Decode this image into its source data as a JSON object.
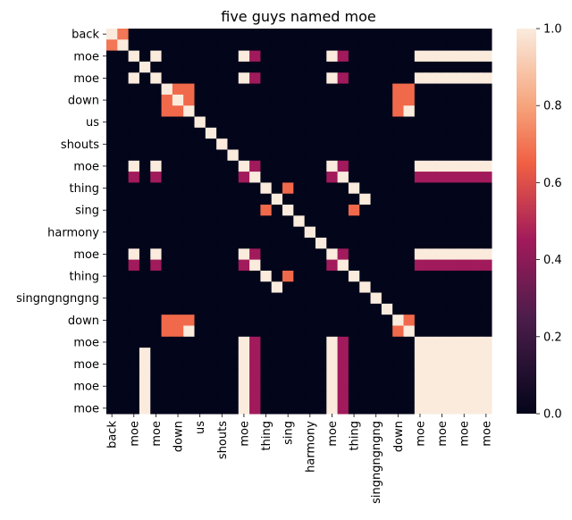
{
  "chart_data": {
    "type": "heatmap",
    "title": "five guys named moe",
    "xlabel": "",
    "ylabel": "",
    "row_labels": [
      "back",
      "moe",
      "moe",
      "down",
      "us",
      "shouts",
      "moe",
      "thing",
      "sing",
      "harmony",
      "moe",
      "thing",
      "singngngngng",
      "down",
      "moe",
      "moe",
      "moe",
      "moe"
    ],
    "col_labels": [
      "back",
      "moe",
      "moe",
      "down",
      "us",
      "shouts",
      "moe",
      "thing",
      "sing",
      "harmony",
      "moe",
      "thing",
      "singngngngng",
      "down",
      "moe",
      "moe",
      "moe",
      "moe"
    ],
    "y_tick_rows": [
      0,
      2,
      4,
      6,
      8,
      10,
      12,
      14,
      16,
      18,
      20,
      22,
      24,
      26,
      28,
      30,
      32,
      34
    ],
    "x_tick_cols": [
      0,
      2,
      4,
      6,
      8,
      10,
      12,
      14,
      16,
      18,
      20,
      22,
      24,
      26,
      28,
      30,
      32,
      34
    ],
    "colorbar": {
      "range": [
        0.0,
        1.0
      ],
      "ticks": [
        "0.0",
        "0.2",
        "0.4",
        "0.6",
        "0.8",
        "1.0"
      ]
    },
    "colormap": {
      "stops": [
        [
          0.0,
          "#03051a"
        ],
        [
          0.25,
          "#4c1d4b"
        ],
        [
          0.45,
          "#a11a5b"
        ],
        [
          0.65,
          "#f06043"
        ],
        [
          0.8,
          "#f6a47c"
        ],
        [
          1.0,
          "#faebdd"
        ]
      ]
    },
    "n": 35,
    "values": [
      [
        1,
        0.7,
        0,
        0,
        0,
        0,
        0,
        0,
        0,
        0,
        0,
        0,
        0,
        0,
        0,
        0,
        0,
        0,
        0,
        0,
        0,
        0,
        0,
        0,
        0,
        0,
        0,
        0,
        0,
        0,
        0,
        0,
        0,
        0,
        0
      ],
      [
        0.7,
        1,
        0,
        0,
        0,
        0,
        0,
        0,
        0,
        0,
        0,
        0,
        0,
        0,
        0,
        0,
        0,
        0,
        0,
        0,
        0,
        0,
        0,
        0,
        0,
        0,
        0,
        0,
        0,
        0,
        0,
        0,
        0,
        0,
        0
      ],
      [
        0,
        0,
        1,
        0,
        1,
        0,
        0,
        0,
        0,
        0,
        0,
        0,
        1,
        0.45,
        0,
        0,
        0,
        0,
        0,
        0,
        1,
        0.45,
        0,
        0,
        0,
        0,
        0,
        0,
        1,
        1,
        1,
        1,
        1,
        1,
        1
      ],
      [
        0,
        0,
        0,
        1,
        0,
        0,
        0,
        0,
        0,
        0,
        0,
        0,
        0,
        0,
        0,
        0,
        0,
        0,
        0,
        0,
        0,
        0,
        0,
        0,
        0,
        0,
        0,
        0,
        0,
        0,
        0,
        0,
        0,
        0,
        0
      ],
      [
        0,
        0,
        1,
        0,
        1,
        0,
        0,
        0,
        0,
        0,
        0,
        0,
        1,
        0.45,
        0,
        0,
        0,
        0,
        0,
        0,
        1,
        0.45,
        0,
        0,
        0,
        0,
        0,
        0,
        1,
        1,
        1,
        1,
        1,
        1,
        1
      ],
      [
        0,
        0,
        0,
        0,
        0,
        1,
        0.67,
        0.67,
        0,
        0,
        0,
        0,
        0,
        0,
        0,
        0,
        0,
        0,
        0,
        0,
        0,
        0,
        0,
        0,
        0,
        0,
        0.67,
        0.67,
        0,
        0,
        0,
        0,
        0,
        0,
        0
      ],
      [
        0,
        0,
        0,
        0,
        0,
        0.67,
        1,
        0.67,
        0,
        0,
        0,
        0,
        0,
        0,
        0,
        0,
        0,
        0,
        0,
        0,
        0,
        0,
        0,
        0,
        0,
        0,
        0.67,
        0.67,
        0,
        0,
        0,
        0,
        0,
        0,
        0
      ],
      [
        0,
        0,
        0,
        0,
        0,
        0.67,
        0.67,
        1,
        0,
        0,
        0,
        0,
        0,
        0,
        0,
        0,
        0,
        0,
        0,
        0,
        0,
        0,
        0,
        0,
        0,
        0,
        0.67,
        1,
        0,
        0,
        0,
        0,
        0,
        0,
        0
      ],
      [
        0,
        0,
        0,
        0,
        0,
        0,
        0,
        0,
        1,
        0,
        0,
        0,
        0,
        0,
        0,
        0,
        0,
        0,
        0,
        0,
        0,
        0,
        0,
        0,
        0,
        0,
        0,
        0,
        0,
        0,
        0,
        0,
        0,
        0,
        0
      ],
      [
        0,
        0,
        0,
        0,
        0,
        0,
        0,
        0,
        0,
        1,
        0,
        0,
        0,
        0,
        0,
        0,
        0,
        0,
        0,
        0,
        0,
        0,
        0,
        0,
        0,
        0,
        0,
        0,
        0,
        0,
        0,
        0,
        0,
        0,
        0
      ],
      [
        0,
        0,
        0,
        0,
        0,
        0,
        0,
        0,
        0,
        0,
        1,
        0,
        0,
        0,
        0,
        0,
        0,
        0,
        0,
        0,
        0,
        0,
        0,
        0,
        0,
        0,
        0,
        0,
        0,
        0,
        0,
        0,
        0,
        0,
        0
      ],
      [
        0,
        0,
        0,
        0,
        0,
        0,
        0,
        0,
        0,
        0,
        0,
        1,
        0,
        0,
        0,
        0,
        0,
        0,
        0,
        0,
        0,
        0,
        0,
        0,
        0,
        0,
        0,
        0,
        0,
        0,
        0,
        0,
        0,
        0,
        0
      ],
      [
        0,
        0,
        1,
        0,
        1,
        0,
        0,
        0,
        0,
        0,
        0,
        0,
        1,
        0.45,
        0,
        0,
        0,
        0,
        0,
        0,
        1,
        0.45,
        0,
        0,
        0,
        0,
        0,
        0,
        1,
        1,
        1,
        1,
        1,
        1,
        1
      ],
      [
        0,
        0,
        0.45,
        0,
        0.45,
        0,
        0,
        0,
        0,
        0,
        0,
        0,
        0.45,
        1,
        0,
        0,
        0,
        0,
        0,
        0,
        0.45,
        1,
        0,
        0,
        0,
        0,
        0,
        0,
        0.45,
        0.45,
        0.45,
        0.45,
        0.45,
        0.45,
        0.45
      ],
      [
        0,
        0,
        0,
        0,
        0,
        0,
        0,
        0,
        0,
        0,
        0,
        0,
        0,
        0,
        1,
        0,
        0.67,
        0,
        0,
        0,
        0,
        0,
        1,
        0,
        0,
        0,
        0,
        0,
        0,
        0,
        0,
        0,
        0,
        0,
        0
      ],
      [
        0,
        0,
        0,
        0,
        0,
        0,
        0,
        0,
        0,
        0,
        0,
        0,
        0,
        0,
        0,
        1,
        0,
        0,
        0,
        0,
        0,
        0,
        0,
        1,
        0,
        0,
        0,
        0,
        0,
        0,
        0,
        0,
        0,
        0,
        0
      ],
      [
        0,
        0,
        0,
        0,
        0,
        0,
        0,
        0,
        0,
        0,
        0,
        0,
        0,
        0,
        0.67,
        0,
        1,
        0,
        0,
        0,
        0,
        0,
        0.67,
        0,
        0,
        0,
        0,
        0,
        0,
        0,
        0,
        0,
        0,
        0,
        0
      ],
      [
        0,
        0,
        0,
        0,
        0,
        0,
        0,
        0,
        0,
        0,
        0,
        0,
        0,
        0,
        0,
        0,
        0,
        1,
        0,
        0,
        0,
        0,
        0,
        0,
        0,
        0,
        0,
        0,
        0,
        0,
        0,
        0,
        0,
        0,
        0
      ],
      [
        0,
        0,
        0,
        0,
        0,
        0,
        0,
        0,
        0,
        0,
        0,
        0,
        0,
        0,
        0,
        0,
        0,
        0,
        1,
        0,
        0,
        0,
        0,
        0,
        0,
        0,
        0,
        0,
        0,
        0,
        0,
        0,
        0,
        0,
        0
      ],
      [
        0,
        0,
        0,
        0,
        0,
        0,
        0,
        0,
        0,
        0,
        0,
        0,
        0,
        0,
        0,
        0,
        0,
        0,
        0,
        1,
        0,
        0,
        0,
        0,
        0,
        0,
        0,
        0,
        0,
        0,
        0,
        0,
        0,
        0,
        0
      ],
      [
        0,
        0,
        1,
        0,
        1,
        0,
        0,
        0,
        0,
        0,
        0,
        0,
        1,
        0.45,
        0,
        0,
        0,
        0,
        0,
        0,
        1,
        0.45,
        0,
        0,
        0,
        0,
        0,
        0,
        1,
        1,
        1,
        1,
        1,
        1,
        1
      ],
      [
        0,
        0,
        0.45,
        0,
        0.45,
        0,
        0,
        0,
        0,
        0,
        0,
        0,
        0.45,
        1,
        0,
        0,
        0,
        0,
        0,
        0,
        0.45,
        1,
        0,
        0,
        0,
        0,
        0,
        0,
        0.45,
        0.45,
        0.45,
        0.45,
        0.45,
        0.45,
        0.45
      ],
      [
        0,
        0,
        0,
        0,
        0,
        0,
        0,
        0,
        0,
        0,
        0,
        0,
        0,
        0,
        1,
        0,
        0.67,
        0,
        0,
        0,
        0,
        0,
        1,
        0,
        0,
        0,
        0,
        0,
        0,
        0,
        0,
        0,
        0,
        0,
        0
      ],
      [
        0,
        0,
        0,
        0,
        0,
        0,
        0,
        0,
        0,
        0,
        0,
        0,
        0,
        0,
        0,
        1,
        0,
        0,
        0,
        0,
        0,
        0,
        0,
        1,
        0,
        0,
        0,
        0,
        0,
        0,
        0,
        0,
        0,
        0,
        0
      ],
      [
        0,
        0,
        0,
        0,
        0,
        0,
        0,
        0,
        0,
        0,
        0,
        0,
        0,
        0,
        0,
        0,
        0,
        0,
        0,
        0,
        0,
        0,
        0,
        0,
        1,
        0,
        0,
        0,
        0,
        0,
        0,
        0,
        0,
        0,
        0
      ],
      [
        0,
        0,
        0,
        0,
        0,
        0,
        0,
        0,
        0,
        0,
        0,
        0,
        0,
        0,
        0,
        0,
        0,
        0,
        0,
        0,
        0,
        0,
        0,
        0,
        0,
        1,
        0,
        0,
        0,
        0,
        0,
        0,
        0,
        0,
        0
      ],
      [
        0,
        0,
        0,
        0,
        0,
        0.67,
        0.67,
        0.67,
        0,
        0,
        0,
        0,
        0,
        0,
        0,
        0,
        0,
        0,
        0,
        0,
        0,
        0,
        0,
        0,
        0,
        0,
        1,
        0.67,
        0,
        0,
        0,
        0,
        0,
        0,
        0
      ],
      [
        0,
        0,
        0,
        0,
        0,
        0.67,
        0.67,
        1,
        0,
        0,
        0,
        0,
        0,
        0,
        0,
        0,
        0,
        0,
        0,
        0,
        0,
        0,
        0,
        0,
        0,
        0,
        0.67,
        1,
        0,
        0,
        0,
        0,
        0,
        0,
        0
      ],
      [
        0,
        0,
        0,
        0,
        0,
        0,
        0,
        0,
        0,
        0,
        0,
        0,
        1,
        0.45,
        0,
        0,
        0,
        0,
        0,
        0,
        1,
        0.45,
        0,
        0,
        0,
        0,
        0,
        0,
        1,
        1,
        1,
        1,
        1,
        1,
        1
      ],
      [
        0,
        0,
        0,
        1,
        0,
        0,
        0,
        0,
        0,
        0,
        0,
        0,
        1,
        0.45,
        0,
        0,
        0,
        0,
        0,
        0,
        1,
        0.45,
        0,
        0,
        0,
        0,
        0,
        0,
        1,
        1,
        1,
        1,
        1,
        1,
        1
      ],
      [
        0,
        0,
        0,
        1,
        0,
        0,
        0,
        0,
        0,
        0,
        0,
        0,
        1,
        0.45,
        0,
        0,
        0,
        0,
        0,
        0,
        1,
        0.45,
        0,
        0,
        0,
        0,
        0,
        0,
        1,
        1,
        1,
        1,
        1,
        1,
        1
      ],
      [
        0,
        0,
        0,
        1,
        0,
        0,
        0,
        0,
        0,
        0,
        0,
        0,
        1,
        0.45,
        0,
        0,
        0,
        0,
        0,
        0,
        1,
        0.45,
        0,
        0,
        0,
        0,
        0,
        0,
        1,
        1,
        1,
        1,
        1,
        1,
        1
      ],
      [
        0,
        0,
        0,
        1,
        0,
        0,
        0,
        0,
        0,
        0,
        0,
        0,
        1,
        0.45,
        0,
        0,
        0,
        0,
        0,
        0,
        1,
        0.45,
        0,
        0,
        0,
        0,
        0,
        0,
        1,
        1,
        1,
        1,
        1,
        1,
        1
      ],
      [
        0,
        0,
        0,
        1,
        0,
        0,
        0,
        0,
        0,
        0,
        0,
        0,
        1,
        0.45,
        0,
        0,
        0,
        0,
        0,
        0,
        1,
        0.45,
        0,
        0,
        0,
        0,
        0,
        0,
        1,
        1,
        1,
        1,
        1,
        1,
        1
      ],
      [
        0,
        0,
        0,
        1,
        0,
        0,
        0,
        0,
        0,
        0,
        0,
        0,
        1,
        0.45,
        0,
        0,
        0,
        0,
        0,
        0,
        1,
        0.45,
        0,
        0,
        0,
        0,
        0,
        0,
        1,
        1,
        1,
        1,
        1,
        1,
        1
      ]
    ]
  }
}
